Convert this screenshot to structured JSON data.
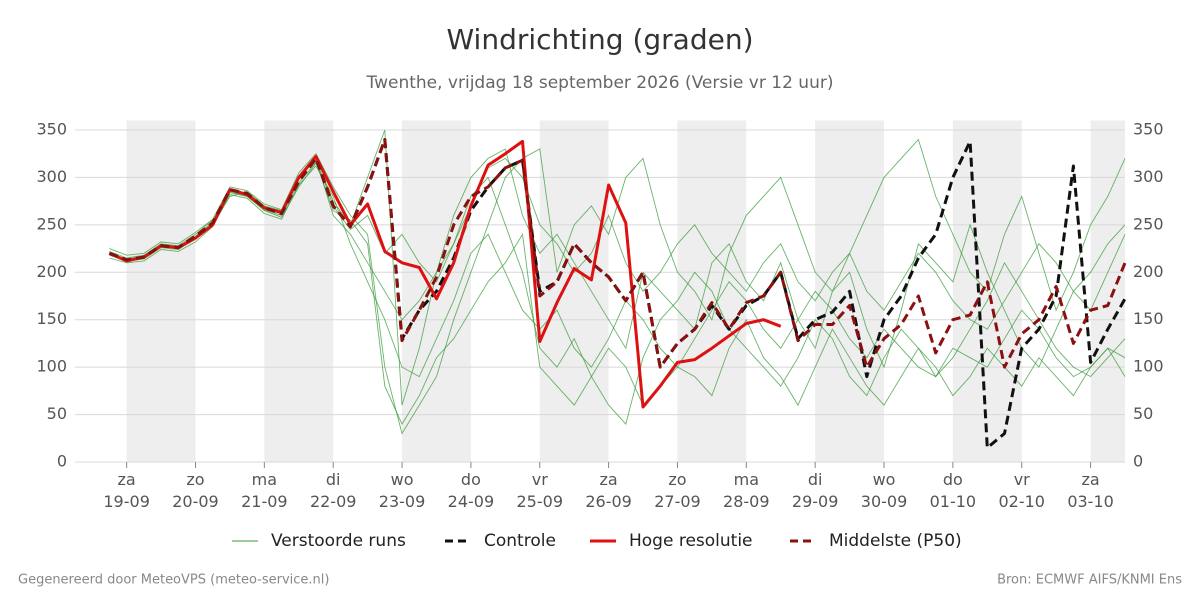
{
  "chart_data": {
    "type": "line",
    "title": "Windrichting (graden)",
    "subtitle": "Twenthe, vrijdag 18 september 2026 (Versie vr 12 uur)",
    "footer_left": "Gegenereerd door MeteoVPS (meteo-service.nl)",
    "footer_right": "Bron: ECMWF AIFS/KNMI Ens",
    "grid": true,
    "xlim": [
      -0.75,
      14.5
    ],
    "ylim": [
      0,
      360
    ],
    "yticks": [
      0,
      50,
      100,
      150,
      200,
      250,
      300,
      350
    ],
    "xticks": [
      {
        "value": 0,
        "label": "za 19-09"
      },
      {
        "value": 1,
        "label": "zo 20-09"
      },
      {
        "value": 2,
        "label": "ma 21-09"
      },
      {
        "value": 3,
        "label": "di 22-09"
      },
      {
        "value": 4,
        "label": "wo 23-09"
      },
      {
        "value": 5,
        "label": "do 24-09"
      },
      {
        "value": 6,
        "label": "vr 25-09"
      },
      {
        "value": 7,
        "label": "za 26-09"
      },
      {
        "value": 8,
        "label": "zo 27-09"
      },
      {
        "value": 9,
        "label": "ma 28-09"
      },
      {
        "value": 10,
        "label": "di 29-09"
      },
      {
        "value": 11,
        "label": "wo 30-09"
      },
      {
        "value": 12,
        "label": "do 01-10"
      },
      {
        "value": 13,
        "label": "vr 02-10"
      },
      {
        "value": 14,
        "label": "za 03-10"
      }
    ],
    "x": [
      -0.25,
      0,
      0.25,
      0.5,
      0.75,
      1,
      1.25,
      1.5,
      1.75,
      2,
      2.25,
      2.5,
      2.75,
      3,
      3.25,
      3.5,
      3.75,
      4,
      4.25,
      4.5,
      4.75,
      5,
      5.25,
      5.5,
      5.75,
      6,
      6.25,
      6.5,
      6.75,
      7,
      7.25,
      7.5,
      7.75,
      8,
      8.25,
      8.5,
      8.75,
      9,
      9.25,
      9.5,
      9.75,
      10,
      10.25,
      10.5,
      10.75,
      11,
      11.25,
      11.5,
      11.75,
      12,
      12.25,
      12.5,
      12.75,
      13,
      13.25,
      13.5,
      13.75,
      14,
      14.25,
      14.5
    ],
    "ensemble": {
      "name": "Verstoorde runs",
      "color": "#3a9a3a",
      "members": [
        [
          222,
          215,
          218,
          230,
          228,
          240,
          255,
          285,
          280,
          265,
          258,
          290,
          315,
          275,
          250,
          300,
          350,
          60,
          120,
          200,
          260,
          300,
          320,
          330,
          260,
          220,
          240,
          210,
          180,
          150,
          120,
          200,
          180,
          160,
          140,
          210,
          230,
          190,
          170,
          210,
          150,
          120,
          180,
          200,
          140,
          100,
          160,
          230,
          210,
          190,
          250,
          200,
          160,
          120,
          100,
          140,
          180,
          200,
          230,
          250
        ],
        [
          218,
          212,
          214,
          226,
          224,
          236,
          250,
          280,
          285,
          270,
          265,
          302,
          318,
          260,
          240,
          210,
          180,
          150,
          170,
          200,
          230,
          280,
          300,
          250,
          200,
          120,
          100,
          130,
          90,
          60,
          40,
          110,
          150,
          170,
          200,
          180,
          140,
          120,
          100,
          80,
          110,
          150,
          130,
          90,
          70,
          110,
          140,
          120,
          90,
          110,
          140,
          170,
          210,
          180,
          150,
          120,
          100,
          90,
          110,
          130
        ],
        [
          225,
          218,
          220,
          232,
          230,
          242,
          256,
          290,
          286,
          272,
          266,
          305,
          325,
          290,
          260,
          240,
          100,
          30,
          60,
          90,
          150,
          200,
          250,
          300,
          320,
          330,
          200,
          250,
          270,
          240,
          300,
          320,
          250,
          200,
          180,
          150,
          220,
          260,
          280,
          300,
          250,
          200,
          180,
          220,
          260,
          300,
          320,
          340,
          280,
          240,
          200,
          180,
          240,
          280,
          220,
          160,
          200,
          250,
          280,
          320
        ],
        [
          215,
          210,
          212,
          224,
          222,
          232,
          248,
          282,
          278,
          262,
          256,
          292,
          312,
          280,
          230,
          190,
          150,
          100,
          90,
          130,
          170,
          220,
          240,
          200,
          160,
          140,
          160,
          120,
          100,
          130,
          170,
          150,
          120,
          100,
          130,
          160,
          190,
          170,
          140,
          120,
          150,
          180,
          160,
          130,
          110,
          140,
          120,
          100,
          90,
          120,
          110,
          100,
          130,
          160,
          140,
          110,
          90,
          100,
          120,
          110
        ],
        [
          220,
          214,
          217,
          229,
          227,
          238,
          253,
          286,
          282,
          268,
          262,
          298,
          320,
          270,
          245,
          260,
          220,
          240,
          210,
          190,
          230,
          270,
          310,
          320,
          300,
          250,
          230,
          200,
          220,
          260,
          210,
          180,
          200,
          230,
          250,
          220,
          200,
          180,
          210,
          230,
          190,
          170,
          200,
          220,
          180,
          160,
          190,
          220,
          200,
          170,
          150,
          140,
          170,
          200,
          230,
          210,
          180,
          160,
          200,
          240
        ],
        [
          219,
          213,
          215,
          227,
          225,
          235,
          251,
          284,
          280,
          266,
          260,
          294,
          316,
          265,
          255,
          230,
          80,
          40,
          70,
          110,
          130,
          160,
          190,
          210,
          240,
          100,
          80,
          60,
          90,
          120,
          100,
          60,
          80,
          100,
          90,
          70,
          120,
          150,
          110,
          90,
          60,
          100,
          140,
          110,
          80,
          60,
          90,
          120,
          100,
          70,
          90,
          120,
          100,
          80,
          110,
          90,
          70,
          100,
          120,
          90
        ]
      ]
    },
    "series": [
      {
        "name": "Controle",
        "color": "#111111",
        "style": "dashed",
        "values": [
          220,
          213,
          216,
          228,
          226,
          238,
          252,
          287,
          283,
          268,
          262,
          296,
          320,
          270,
          248,
          290,
          340,
          130,
          160,
          180,
          215,
          265,
          290,
          310,
          318,
          180,
          190,
          230,
          210,
          195,
          170,
          200,
          100,
          125,
          140,
          165,
          140,
          165,
          175,
          200,
          130,
          150,
          158,
          180,
          90,
          150,
          175,
          215,
          240,
          300,
          338,
          15,
          30,
          120,
          140,
          175,
          312,
          105,
          140,
          172
        ]
      },
      {
        "name": "Hoge resolutie",
        "color": "#dd1111",
        "style": "solid",
        "values": [
          220,
          212,
          216,
          228,
          226,
          236,
          250,
          287,
          282,
          268,
          263,
          300,
          322,
          285,
          250,
          272,
          222,
          210,
          205,
          172,
          210,
          270,
          313,
          325,
          338,
          127,
          168,
          204,
          192,
          292,
          252,
          58,
          80,
          105,
          108,
          120,
          133,
          146,
          150,
          143,
          null,
          null,
          null,
          null,
          null,
          null,
          null,
          null,
          null,
          null,
          null,
          null,
          null,
          null,
          null,
          null,
          null,
          null,
          null,
          null
        ]
      },
      {
        "name": "Middelste (P50)",
        "color": "#8b1010",
        "style": "dashed",
        "values": [
          220,
          213,
          216,
          228,
          226,
          238,
          252,
          287,
          283,
          268,
          262,
          296,
          320,
          270,
          248,
          290,
          340,
          128,
          160,
          195,
          250,
          280,
          290,
          310,
          318,
          175,
          190,
          230,
          210,
          195,
          170,
          200,
          100,
          125,
          140,
          168,
          140,
          168,
          175,
          200,
          128,
          145,
          145,
          165,
          100,
          130,
          145,
          175,
          115,
          150,
          155,
          190,
          100,
          135,
          150,
          185,
          125,
          160,
          165,
          210
        ]
      }
    ]
  }
}
